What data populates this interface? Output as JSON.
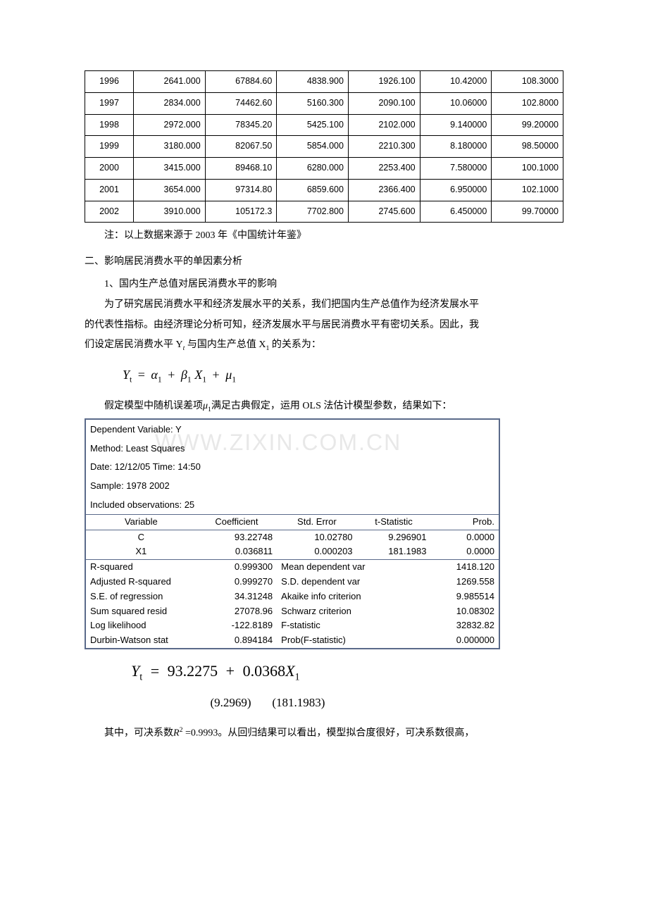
{
  "dataTable": {
    "rows": [
      [
        "1996",
        "2641.000",
        "67884.60",
        "4838.900",
        "1926.100",
        "10.42000",
        "108.3000"
      ],
      [
        "1997",
        "2834.000",
        "74462.60",
        "5160.300",
        "2090.100",
        "10.06000",
        "102.8000"
      ],
      [
        "1998",
        "2972.000",
        "78345.20",
        "5425.100",
        "2102.000",
        "9.140000",
        "99.20000"
      ],
      [
        "1999",
        "3180.000",
        "82067.50",
        "5854.000",
        "2210.300",
        "8.180000",
        "98.50000"
      ],
      [
        "2000",
        "3415.000",
        "89468.10",
        "6280.000",
        "2253.400",
        "7.580000",
        "100.1000"
      ],
      [
        "2001",
        "3654.000",
        "97314.80",
        "6859.600",
        "2366.400",
        "6.950000",
        "102.1000"
      ],
      [
        "2002",
        "3910.000",
        "105172.3",
        "7702.800",
        "2745.600",
        "6.450000",
        "99.70000"
      ]
    ]
  },
  "noteText": "注：以上数据来源于 2003 年《中国统计年鉴》",
  "h2": "二、影响居民消费水平的单因素分析",
  "p1": "1、国内生产总值对居民消费水平的影响",
  "p2a": "为了研究居民消费水平和经济发展水平的关系，我们把国内生产总值作为经济发展水平",
  "p2b": "的代表性指标。由经济理论分析可知，经济发展水平与居民消费水平有密切关系。因此，我",
  "p2c_pre": "们设定居民消费水平 Y",
  "p2c_mid": " 与国内生产总值 X",
  "p2c_post": " 的关系为：",
  "formula1": {
    "Y": "Y",
    "Ysub": "t",
    "a": "α",
    "asub": "1",
    "b": "β",
    "bsub": "1",
    "X": "X",
    "Xsub": "1",
    "mu": "μ",
    "musub": "1"
  },
  "p3_pre": "假定模型中随机误差项",
  "p3_mu": "μ",
  "p3_sub": "1",
  "p3_post": "满足古典假定，运用 OLS 法估计模型参数，结果如下：",
  "watermark": "WWW.ZIXIN.COM.CN",
  "eviews": {
    "header": [
      "Dependent Variable: Y",
      "Method: Least Squares",
      "Date: 12/12/05    Time: 14:50",
      "Sample: 1978 2002",
      "Included observations: 25"
    ],
    "colHead": [
      "Variable",
      "Coefficient",
      "Std. Error",
      "t-Statistic",
      "Prob."
    ],
    "coef": [
      [
        "C",
        "93.22748",
        "10.02780",
        "9.296901",
        "0.0000"
      ],
      [
        "X1",
        "0.036811",
        "0.000203",
        "181.1983",
        "0.0000"
      ]
    ],
    "stats": [
      [
        "R-squared",
        "0.999300",
        "Mean dependent var",
        "1418.120"
      ],
      [
        "Adjusted R-squared",
        "0.999270",
        "S.D. dependent var",
        "1269.558"
      ],
      [
        "S.E. of regression",
        "34.31248",
        "Akaike info criterion",
        "9.985514"
      ],
      [
        "Sum squared resid",
        "27078.96",
        "Schwarz criterion",
        "10.08302"
      ],
      [
        "Log likelihood",
        "-122.8189",
        "F-statistic",
        "32832.82"
      ],
      [
        "Durbin-Watson stat",
        "0.894184",
        "Prob(F-statistic)",
        "0.000000"
      ]
    ]
  },
  "formula2": {
    "Y": "Y",
    "Ysub": "t",
    "c0": "93.2275",
    "c1": "0.0368",
    "X": "X",
    "Xsub": "1"
  },
  "tvals": "(9.2969)       (181.1983)",
  "p4_pre": "其中，可决系数",
  "p4_R": "R",
  "p4_2": "2",
  "p4_post": " =0.9993。从回归结果可以看出，模型拟合度很好，可决系数很高，"
}
